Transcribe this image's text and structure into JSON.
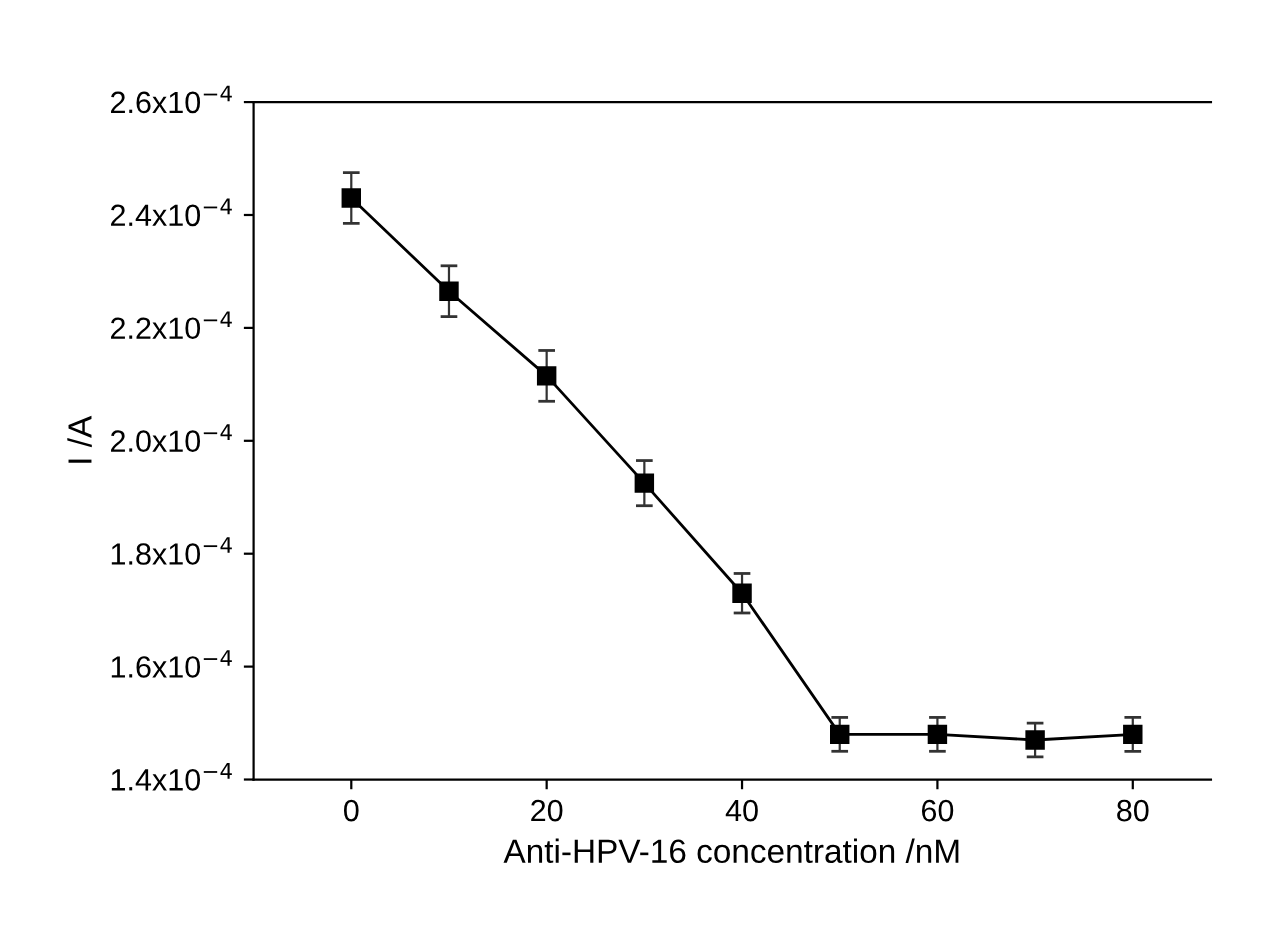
{
  "chart_data": {
    "type": "line",
    "xlabel": "Anti-HPV-16 concentration /nM",
    "ylabel": "I /A",
    "x": [
      0,
      10,
      20,
      30,
      40,
      50,
      60,
      70,
      80
    ],
    "series": [
      {
        "color": "#000000",
        "values": [
          0.000243,
          0.0002265,
          0.0002115,
          0.0001925,
          0.000173,
          0.000148,
          0.000148,
          0.000147,
          0.000148
        ],
        "errors": [
          4.5e-06,
          4.5e-06,
          4.5e-06,
          4e-06,
          3.5e-06,
          3e-06,
          3e-06,
          3e-06,
          3e-06
        ]
      }
    ],
    "marker": "square",
    "line_style": "solid",
    "grid": false,
    "legend": false,
    "xlim": [
      -10,
      88
    ],
    "xticks": [
      0,
      20,
      40,
      60,
      80
    ],
    "ylim": [
      0.00014,
      0.00026
    ],
    "yticks": [
      {
        "value": 0.00014,
        "label": "1.4x10$^{−4}$"
      },
      {
        "value": 0.00016,
        "label": "1.6x10$^{−4}$"
      },
      {
        "value": 0.00018,
        "label": "1.8x10$^{−4}$"
      },
      {
        "value": 0.0002,
        "label": "2.0x10$^{−4}$"
      },
      {
        "value": 0.00022,
        "label": "2.2x10$^{−4}$"
      },
      {
        "value": 0.00024,
        "label": "2.4x10$^{−4}$"
      },
      {
        "value": 0.00026,
        "label": "2.6x10$^{−4}$"
      }
    ]
  }
}
